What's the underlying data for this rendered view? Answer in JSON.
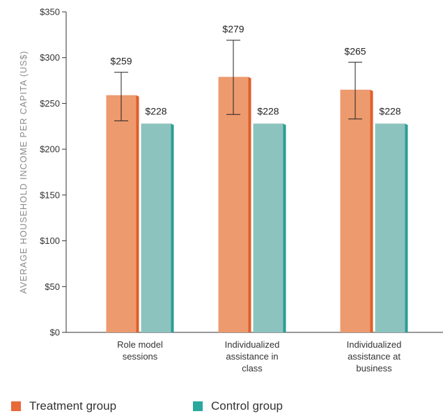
{
  "chart_data": {
    "type": "bar",
    "title": "",
    "xlabel": "",
    "ylabel": "AVERAGE HOUSEHOLD INCOME PER CAPITA (US$)",
    "ylim": [
      0,
      350
    ],
    "yticks": [
      {
        "value": 0,
        "label": "$0"
      },
      {
        "value": 50,
        "label": "$50"
      },
      {
        "value": 100,
        "label": "$100"
      },
      {
        "value": 150,
        "label": "$150"
      },
      {
        "value": 200,
        "label": "$200"
      },
      {
        "value": 250,
        "label": "$250"
      },
      {
        "value": 300,
        "label": "$300"
      },
      {
        "value": 350,
        "label": "$350"
      }
    ],
    "grid": false,
    "legend_position": "bottom-left",
    "categories": [
      [
        "Role model",
        "sessions"
      ],
      [
        "Individualized",
        "assistance in",
        "class"
      ],
      [
        "Individualized",
        "assistance at",
        "business"
      ]
    ],
    "series": [
      {
        "name": "Treatment group",
        "color": "#ed9a6e",
        "edge_color": "#e05f2a",
        "values": [
          259,
          279,
          265
        ],
        "labels": [
          "$259",
          "$279",
          "$265"
        ],
        "error_bars": [
          [
            231,
            284
          ],
          [
            238,
            319
          ],
          [
            233,
            295
          ]
        ]
      },
      {
        "name": "Control group",
        "color": "#8dc3bf",
        "edge_color": "#2b9e96",
        "values": [
          228,
          228,
          228
        ],
        "labels": [
          "$228",
          "$228",
          "$228"
        ]
      }
    ]
  },
  "legend": {
    "treatment_label": "Treatment group",
    "treatment_color": "#e8683a",
    "control_label": "Control group",
    "control_color": "#2aa89d"
  }
}
